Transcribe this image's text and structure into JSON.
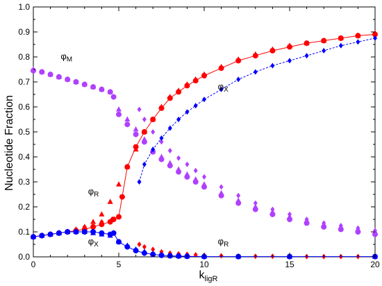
{
  "chart_data": {
    "type": "scatter",
    "xlabel": "k",
    "xlabel_sub": "ligR",
    "ylabel": "Nucleotide Fraction",
    "xlim": [
      0,
      20
    ],
    "ylim": [
      0,
      1
    ],
    "x_ticks": [
      "0",
      "5",
      "10",
      "15",
      "20"
    ],
    "y_ticks": [
      "0.0",
      "0.1",
      "0.2",
      "0.3",
      "0.4",
      "0.5",
      "0.6",
      "0.7",
      "0.8",
      "0.9",
      "1.0"
    ],
    "grid": false,
    "colors": {
      "red": "#ff0000",
      "blue": "#0000ff",
      "purple": "#b040ff"
    },
    "annotations": [
      {
        "text": "φ",
        "sub": "M",
        "x": 1.6,
        "y": 0.79
      },
      {
        "text": "φ",
        "sub": "X",
        "x": 10.8,
        "y": 0.67
      },
      {
        "text": "φ",
        "sub": "R",
        "x": 3.2,
        "y": 0.25
      },
      {
        "text": "φ",
        "sub": "X",
        "x": 3.2,
        "y": 0.05
      },
      {
        "text": "φ",
        "sub": "R",
        "x": 10.8,
        "y": 0.05
      }
    ],
    "series": [
      {
        "color": "#b040ff",
        "marker": "triangle",
        "line": false,
        "points": [
          [
            0,
            0.75
          ],
          [
            0.5,
            0.74
          ],
          [
            1,
            0.73
          ],
          [
            1.5,
            0.72
          ],
          [
            2,
            0.71
          ],
          [
            2.5,
            0.7
          ],
          [
            3,
            0.69
          ],
          [
            3.5,
            0.68
          ],
          [
            4,
            0.67
          ],
          [
            4.5,
            0.66
          ],
          [
            5,
            0.59
          ],
          [
            5.5,
            0.55
          ],
          [
            6,
            0.51
          ],
          [
            6.5,
            0.47
          ],
          [
            7,
            0.43
          ],
          [
            7.5,
            0.4
          ],
          [
            8,
            0.375
          ],
          [
            8.5,
            0.35
          ],
          [
            9,
            0.33
          ],
          [
            9.5,
            0.31
          ],
          [
            10,
            0.29
          ],
          [
            11,
            0.255
          ],
          [
            12,
            0.225
          ],
          [
            13,
            0.2
          ],
          [
            14,
            0.18
          ],
          [
            15,
            0.16
          ],
          [
            16,
            0.145
          ],
          [
            17,
            0.13
          ],
          [
            18,
            0.12
          ],
          [
            19,
            0.11
          ],
          [
            20,
            0.1
          ]
        ]
      },
      {
        "color": "#b040ff",
        "marker": "circle",
        "line": false,
        "points": [
          [
            0,
            0.745
          ],
          [
            0.5,
            0.74
          ],
          [
            1,
            0.73
          ],
          [
            1.5,
            0.72
          ],
          [
            2,
            0.71
          ],
          [
            2.5,
            0.7
          ],
          [
            3,
            0.69
          ],
          [
            3.5,
            0.68
          ],
          [
            4,
            0.67
          ],
          [
            4.5,
            0.66
          ],
          [
            4.7,
            0.64
          ],
          [
            5,
            0.57
          ],
          [
            5.5,
            0.53
          ],
          [
            6,
            0.49
          ],
          [
            6.5,
            0.46
          ],
          [
            7,
            0.42
          ],
          [
            7.5,
            0.39
          ],
          [
            8,
            0.365
          ],
          [
            8.5,
            0.34
          ],
          [
            9,
            0.32
          ],
          [
            9.5,
            0.3
          ],
          [
            10,
            0.28
          ],
          [
            11,
            0.245
          ],
          [
            12,
            0.215
          ],
          [
            13,
            0.19
          ],
          [
            14,
            0.17
          ],
          [
            15,
            0.15
          ],
          [
            16,
            0.135
          ],
          [
            17,
            0.12
          ],
          [
            18,
            0.11
          ],
          [
            19,
            0.1
          ],
          [
            20,
            0.09
          ]
        ]
      },
      {
        "color": "#b040ff",
        "marker": "diamond",
        "line": false,
        "points": [
          [
            6.2,
            0.59
          ],
          [
            6.5,
            0.55
          ],
          [
            7,
            0.5
          ],
          [
            7.5,
            0.46
          ],
          [
            8,
            0.425
          ],
          [
            8.5,
            0.395
          ],
          [
            9,
            0.37
          ],
          [
            9.5,
            0.345
          ],
          [
            10,
            0.32
          ],
          [
            11,
            0.28
          ],
          [
            12,
            0.245
          ],
          [
            13,
            0.215
          ],
          [
            14,
            0.19
          ],
          [
            15,
            0.17
          ],
          [
            16,
            0.15
          ],
          [
            17,
            0.135
          ],
          [
            18,
            0.125
          ],
          [
            19,
            0.115
          ],
          [
            20,
            0.105
          ]
        ]
      },
      {
        "color": "#ff0000",
        "marker": "triangle",
        "line": false,
        "points": [
          [
            0,
            0.08
          ],
          [
            0.5,
            0.085
          ],
          [
            1,
            0.09
          ],
          [
            1.5,
            0.095
          ],
          [
            2,
            0.1
          ],
          [
            2.5,
            0.11
          ],
          [
            3,
            0.12
          ],
          [
            3.5,
            0.14
          ],
          [
            4,
            0.17
          ],
          [
            4.5,
            0.22
          ],
          [
            5,
            0.29
          ],
          [
            5.5,
            0.36
          ],
          [
            6,
            0.43
          ],
          [
            6.5,
            0.5
          ],
          [
            7,
            0.55
          ],
          [
            7.5,
            0.6
          ],
          [
            8,
            0.64
          ],
          [
            8.5,
            0.665
          ],
          [
            9,
            0.69
          ],
          [
            9.5,
            0.71
          ],
          [
            10,
            0.73
          ],
          [
            11,
            0.76
          ],
          [
            12,
            0.79
          ],
          [
            13,
            0.81
          ],
          [
            14,
            0.83
          ],
          [
            15,
            0.845
          ],
          [
            16,
            0.855
          ],
          [
            17,
            0.865
          ],
          [
            18,
            0.875
          ],
          [
            19,
            0.885
          ],
          [
            20,
            0.895
          ]
        ]
      },
      {
        "color": "#ff0000",
        "marker": "circle",
        "line": true,
        "points": [
          [
            0,
            0.08
          ],
          [
            0.5,
            0.085
          ],
          [
            1,
            0.09
          ],
          [
            1.5,
            0.095
          ],
          [
            2,
            0.1
          ],
          [
            2.5,
            0.105
          ],
          [
            3,
            0.11
          ],
          [
            3.5,
            0.12
          ],
          [
            4,
            0.13
          ],
          [
            4.5,
            0.14
          ],
          [
            4.7,
            0.15
          ],
          [
            5,
            0.16
          ],
          [
            5.2,
            0.24
          ],
          [
            5.5,
            0.36
          ],
          [
            6,
            0.44
          ],
          [
            6.5,
            0.5
          ],
          [
            7,
            0.55
          ],
          [
            7.5,
            0.595
          ],
          [
            8,
            0.635
          ],
          [
            8.5,
            0.66
          ],
          [
            9,
            0.685
          ],
          [
            9.5,
            0.705
          ],
          [
            10,
            0.725
          ],
          [
            11,
            0.755
          ],
          [
            12,
            0.785
          ],
          [
            13,
            0.805
          ],
          [
            14,
            0.825
          ],
          [
            15,
            0.84
          ],
          [
            16,
            0.855
          ],
          [
            17,
            0.865
          ],
          [
            18,
            0.875
          ],
          [
            19,
            0.885
          ],
          [
            20,
            0.89
          ]
        ]
      },
      {
        "color": "#ff0000",
        "marker": "diamond",
        "line": false,
        "points": [
          [
            0,
            0.08
          ],
          [
            1,
            0.09
          ],
          [
            2,
            0.1
          ],
          [
            3,
            0.12
          ],
          [
            4,
            0.14
          ],
          [
            4.6,
            0.15
          ],
          [
            6.2,
            0.05
          ],
          [
            6.5,
            0.04
          ],
          [
            7,
            0.03
          ],
          [
            7.5,
            0.02
          ],
          [
            8,
            0.015
          ],
          [
            8.5,
            0.012
          ],
          [
            9,
            0.01
          ],
          [
            9.5,
            0.008
          ],
          [
            10,
            0.006
          ],
          [
            11,
            0.004
          ],
          [
            12,
            0.003
          ],
          [
            13,
            0.002
          ],
          [
            14,
            0.002
          ],
          [
            15,
            0.001
          ],
          [
            16,
            0.001
          ],
          [
            17,
            0.001
          ],
          [
            18,
            0.001
          ],
          [
            19,
            0.001
          ],
          [
            20,
            0.001
          ]
        ]
      },
      {
        "color": "#0000ff",
        "marker": "triangle",
        "line": false,
        "points": [
          [
            0,
            0.08
          ],
          [
            0.5,
            0.085
          ],
          [
            1,
            0.09
          ],
          [
            1.5,
            0.095
          ],
          [
            2,
            0.1
          ],
          [
            2.5,
            0.1
          ],
          [
            3,
            0.1
          ],
          [
            3.5,
            0.095
          ],
          [
            4,
            0.09
          ],
          [
            4.5,
            0.085
          ],
          [
            5,
            0.06
          ],
          [
            5.5,
            0.045
          ],
          [
            6,
            0.03
          ],
          [
            6.5,
            0.02
          ],
          [
            7,
            0.013
          ],
          [
            7.5,
            0.008
          ],
          [
            8,
            0.005
          ],
          [
            8.5,
            0.003
          ],
          [
            9,
            0.002
          ],
          [
            10,
            0.001
          ],
          [
            12,
            0.001
          ],
          [
            15,
            0.001
          ],
          [
            20,
            0.001
          ]
        ]
      },
      {
        "color": "#0000ff",
        "marker": "circle",
        "line": true,
        "points": [
          [
            0,
            0.08
          ],
          [
            0.5,
            0.085
          ],
          [
            1,
            0.09
          ],
          [
            1.5,
            0.095
          ],
          [
            2,
            0.1
          ],
          [
            2.5,
            0.1
          ],
          [
            3,
            0.1
          ],
          [
            3.5,
            0.1
          ],
          [
            4,
            0.095
          ],
          [
            4.5,
            0.09
          ],
          [
            4.7,
            0.095
          ],
          [
            5,
            0.06
          ],
          [
            5.5,
            0.04
          ],
          [
            6,
            0.025
          ],
          [
            6.5,
            0.015
          ],
          [
            7,
            0.01
          ],
          [
            7.5,
            0.006
          ],
          [
            8,
            0.004
          ],
          [
            8.5,
            0.003
          ],
          [
            9,
            0.002
          ],
          [
            10,
            0.001
          ],
          [
            12,
            0.001
          ],
          [
            15,
            0.001
          ],
          [
            20,
            0.001
          ]
        ]
      },
      {
        "color": "#0000ff",
        "marker": "diamond",
        "line": true,
        "dashed": true,
        "points": [
          [
            6.2,
            0.3
          ],
          [
            6.5,
            0.37
          ],
          [
            7,
            0.43
          ],
          [
            7.5,
            0.475
          ],
          [
            8,
            0.515
          ],
          [
            8.5,
            0.55
          ],
          [
            9,
            0.58
          ],
          [
            9.5,
            0.605
          ],
          [
            10,
            0.63
          ],
          [
            11,
            0.67
          ],
          [
            12,
            0.71
          ],
          [
            13,
            0.74
          ],
          [
            14,
            0.765
          ],
          [
            15,
            0.785
          ],
          [
            16,
            0.805
          ],
          [
            17,
            0.825
          ],
          [
            18,
            0.845
          ],
          [
            19,
            0.86
          ],
          [
            20,
            0.875
          ]
        ]
      }
    ]
  }
}
